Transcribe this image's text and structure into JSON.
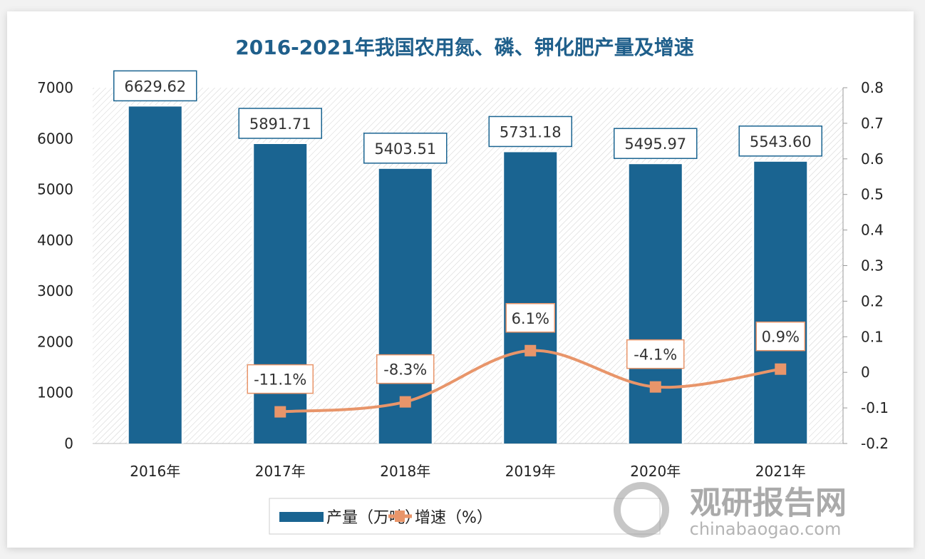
{
  "chart_data": {
    "type": "bar+line",
    "title": "2016-2021年我国农用氮、磷、钾化肥产量及增速",
    "categories": [
      "2016年",
      "2017年",
      "2018年",
      "2019年",
      "2020年",
      "2021年"
    ],
    "series": [
      {
        "name": "产量（万吨）",
        "type": "bar",
        "axis": "left",
        "values": [
          6629.62,
          5891.71,
          5403.51,
          5731.18,
          5495.97,
          5543.6
        ],
        "labels": [
          "6629.62",
          "5891.71",
          "5403.51",
          "5731.18",
          "5495.97",
          "5543.60"
        ],
        "color": "#1a6491"
      },
      {
        "name": "增速（%）",
        "type": "line",
        "axis": "right",
        "values": [
          null,
          -0.111,
          -0.083,
          0.061,
          -0.041,
          0.009
        ],
        "labels": [
          "",
          "-11.1%",
          "-8.3%",
          "6.1%",
          "-4.1%",
          "0.9%"
        ],
        "color": "#e8956a"
      }
    ],
    "left_axis": {
      "ylim": [
        0,
        7000
      ],
      "ticks": [
        "0",
        "1000",
        "2000",
        "3000",
        "4000",
        "5000",
        "6000",
        "7000"
      ]
    },
    "right_axis": {
      "ylim": [
        -0.2,
        0.8
      ],
      "ticks": [
        "-0.2",
        "-0.1",
        "0",
        "0.1",
        "0.2",
        "0.3",
        "0.4",
        "0.5",
        "0.6",
        "0.7",
        "0.8"
      ]
    },
    "legend": "bottom"
  },
  "watermark": {
    "cn": "观研报告网",
    "en": "chinabaogao.com"
  }
}
